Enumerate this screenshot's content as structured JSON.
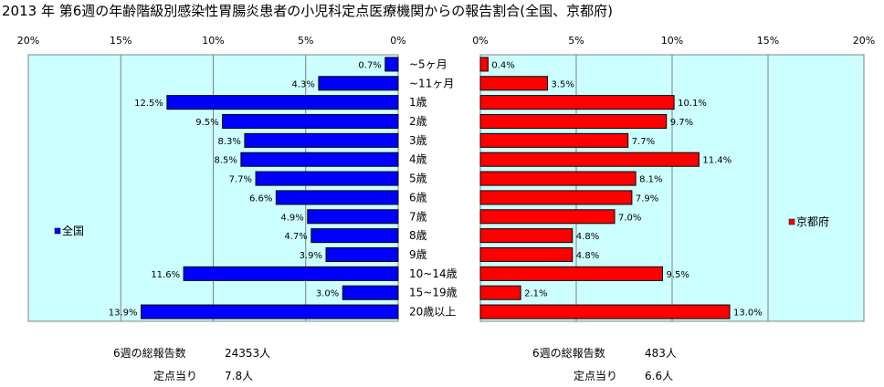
{
  "title": "2013 年 第6週の年齢階級別感染性胃腸炎患者の小児科定点医療機関からの報告割合(全国、京都府)",
  "chart_data": {
    "type": "bar",
    "orientation": "horizontal-butterfly",
    "categories": [
      "~5ヶ月",
      "~11ヶ月",
      "1歳",
      "2歳",
      "3歳",
      "4歳",
      "5歳",
      "6歳",
      "7歳",
      "8歳",
      "9歳",
      "10~14歳",
      "15~19歳",
      "20歳以上"
    ],
    "series": [
      {
        "name": "全国",
        "values": [
          0.7,
          4.3,
          12.5,
          9.5,
          8.3,
          8.5,
          7.7,
          6.6,
          4.9,
          4.7,
          3.9,
          11.6,
          3.0,
          13.9
        ],
        "color": "#0000ff"
      },
      {
        "name": "京都府",
        "values": [
          0.4,
          3.5,
          10.1,
          9.7,
          7.7,
          11.4,
          8.1,
          7.9,
          7.0,
          4.8,
          4.8,
          9.5,
          2.1,
          13.0
        ],
        "color": "#ff0000"
      }
    ],
    "xlim": [
      0,
      20
    ],
    "ticks": [
      "20%",
      "15%",
      "10%",
      "5%",
      "0%"
    ],
    "ticks_right": [
      "0%",
      "5%",
      "10%",
      "15%",
      "20%"
    ],
    "plot_background": "#ccffff",
    "grid": true
  },
  "footer": {
    "national_total_label": "6週の総報告数",
    "national_total_value": "24353人",
    "national_per_site_label": "定点当り",
    "national_per_site_value": "7.8人",
    "kyoto_total_label": "6週の総報告数",
    "kyoto_total_value": "483人",
    "kyoto_per_site_label": "定点当り",
    "kyoto_per_site_value": "6.6人"
  }
}
